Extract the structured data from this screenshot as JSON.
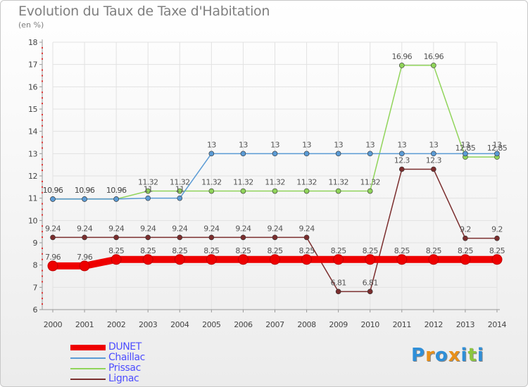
{
  "title": "Evolution du Taux de Taxe d'Habitation",
  "subtitle": "(en %)",
  "logo": {
    "letters": [
      "P",
      "r",
      "o",
      "x",
      "i",
      "t",
      "i"
    ],
    "colors": [
      "#2f8fd8",
      "#e8901a",
      "#2f8fd8",
      "#e8901a",
      "#2f8fd8",
      "#8cc63f",
      "#2f8fd8"
    ]
  },
  "chart_data": {
    "type": "line",
    "title": "Evolution du Taux de Taxe d'Habitation",
    "ylabel": "(en %)",
    "xlabel": "",
    "x": [
      "2000",
      "2001",
      "2002",
      "2003",
      "2004",
      "2005",
      "2006",
      "2007",
      "2008",
      "2009",
      "2010",
      "2011",
      "2012",
      "2013",
      "2014"
    ],
    "ylim": [
      6,
      18
    ],
    "yticks": [
      "6",
      "7",
      "8",
      "9",
      "10",
      "11",
      "12",
      "13",
      "14",
      "15",
      "16",
      "17",
      "18"
    ],
    "grid": true,
    "legend_position": "bottom-left",
    "series": [
      {
        "name": "DUNET",
        "color": "#ee0000",
        "values": [
          7.96,
          7.96,
          8.25,
          8.25,
          8.25,
          8.25,
          8.25,
          8.25,
          8.25,
          8.25,
          8.25,
          8.25,
          8.25,
          8.25,
          8.25
        ],
        "labels": [
          "7.96",
          "7.96",
          "8.25",
          "8.25",
          "8.25",
          "8.25",
          "8.25",
          "8.25",
          "8.25",
          "8.25",
          "8.25",
          "8.25",
          "8.25",
          "8.25",
          "8.25"
        ]
      },
      {
        "name": "Chaillac",
        "color": "#5b9bd5",
        "values": [
          10.96,
          10.96,
          10.96,
          11,
          11,
          13,
          13,
          13,
          13,
          13,
          13,
          13,
          13,
          13,
          13
        ],
        "labels": [
          "10.96",
          "10.96",
          "10.96",
          "11",
          "11",
          "13",
          "13",
          "13",
          "13",
          "13",
          "13",
          "13",
          "13",
          "13",
          "13"
        ]
      },
      {
        "name": "Prissac",
        "color": "#90d45a",
        "values": [
          10.96,
          10.96,
          10.96,
          11.32,
          11.32,
          11.32,
          11.32,
          11.32,
          11.32,
          11.32,
          11.32,
          16.96,
          16.96,
          12.85,
          12.85
        ],
        "labels": [
          "10.96",
          "10.96",
          "10.96",
          "11.32",
          "11.32",
          "11.32",
          "11.32",
          "11.32",
          "11.32",
          "11.32",
          "11.32",
          "16.96",
          "16.96",
          "12.85",
          "12.85"
        ]
      },
      {
        "name": "Lignac",
        "color": "#7b2e2e",
        "values": [
          9.24,
          9.24,
          9.24,
          9.24,
          9.24,
          9.24,
          9.24,
          9.24,
          9.24,
          6.81,
          6.81,
          12.3,
          12.3,
          9.2,
          9.2
        ],
        "labels": [
          "9.24",
          "9.24",
          "9.24",
          "9.24",
          "9.24",
          "9.24",
          "9.24",
          "9.24",
          "9.24",
          "6.81",
          "6.81",
          "12.3",
          "12.3",
          "9.2",
          "9.2"
        ]
      }
    ]
  }
}
